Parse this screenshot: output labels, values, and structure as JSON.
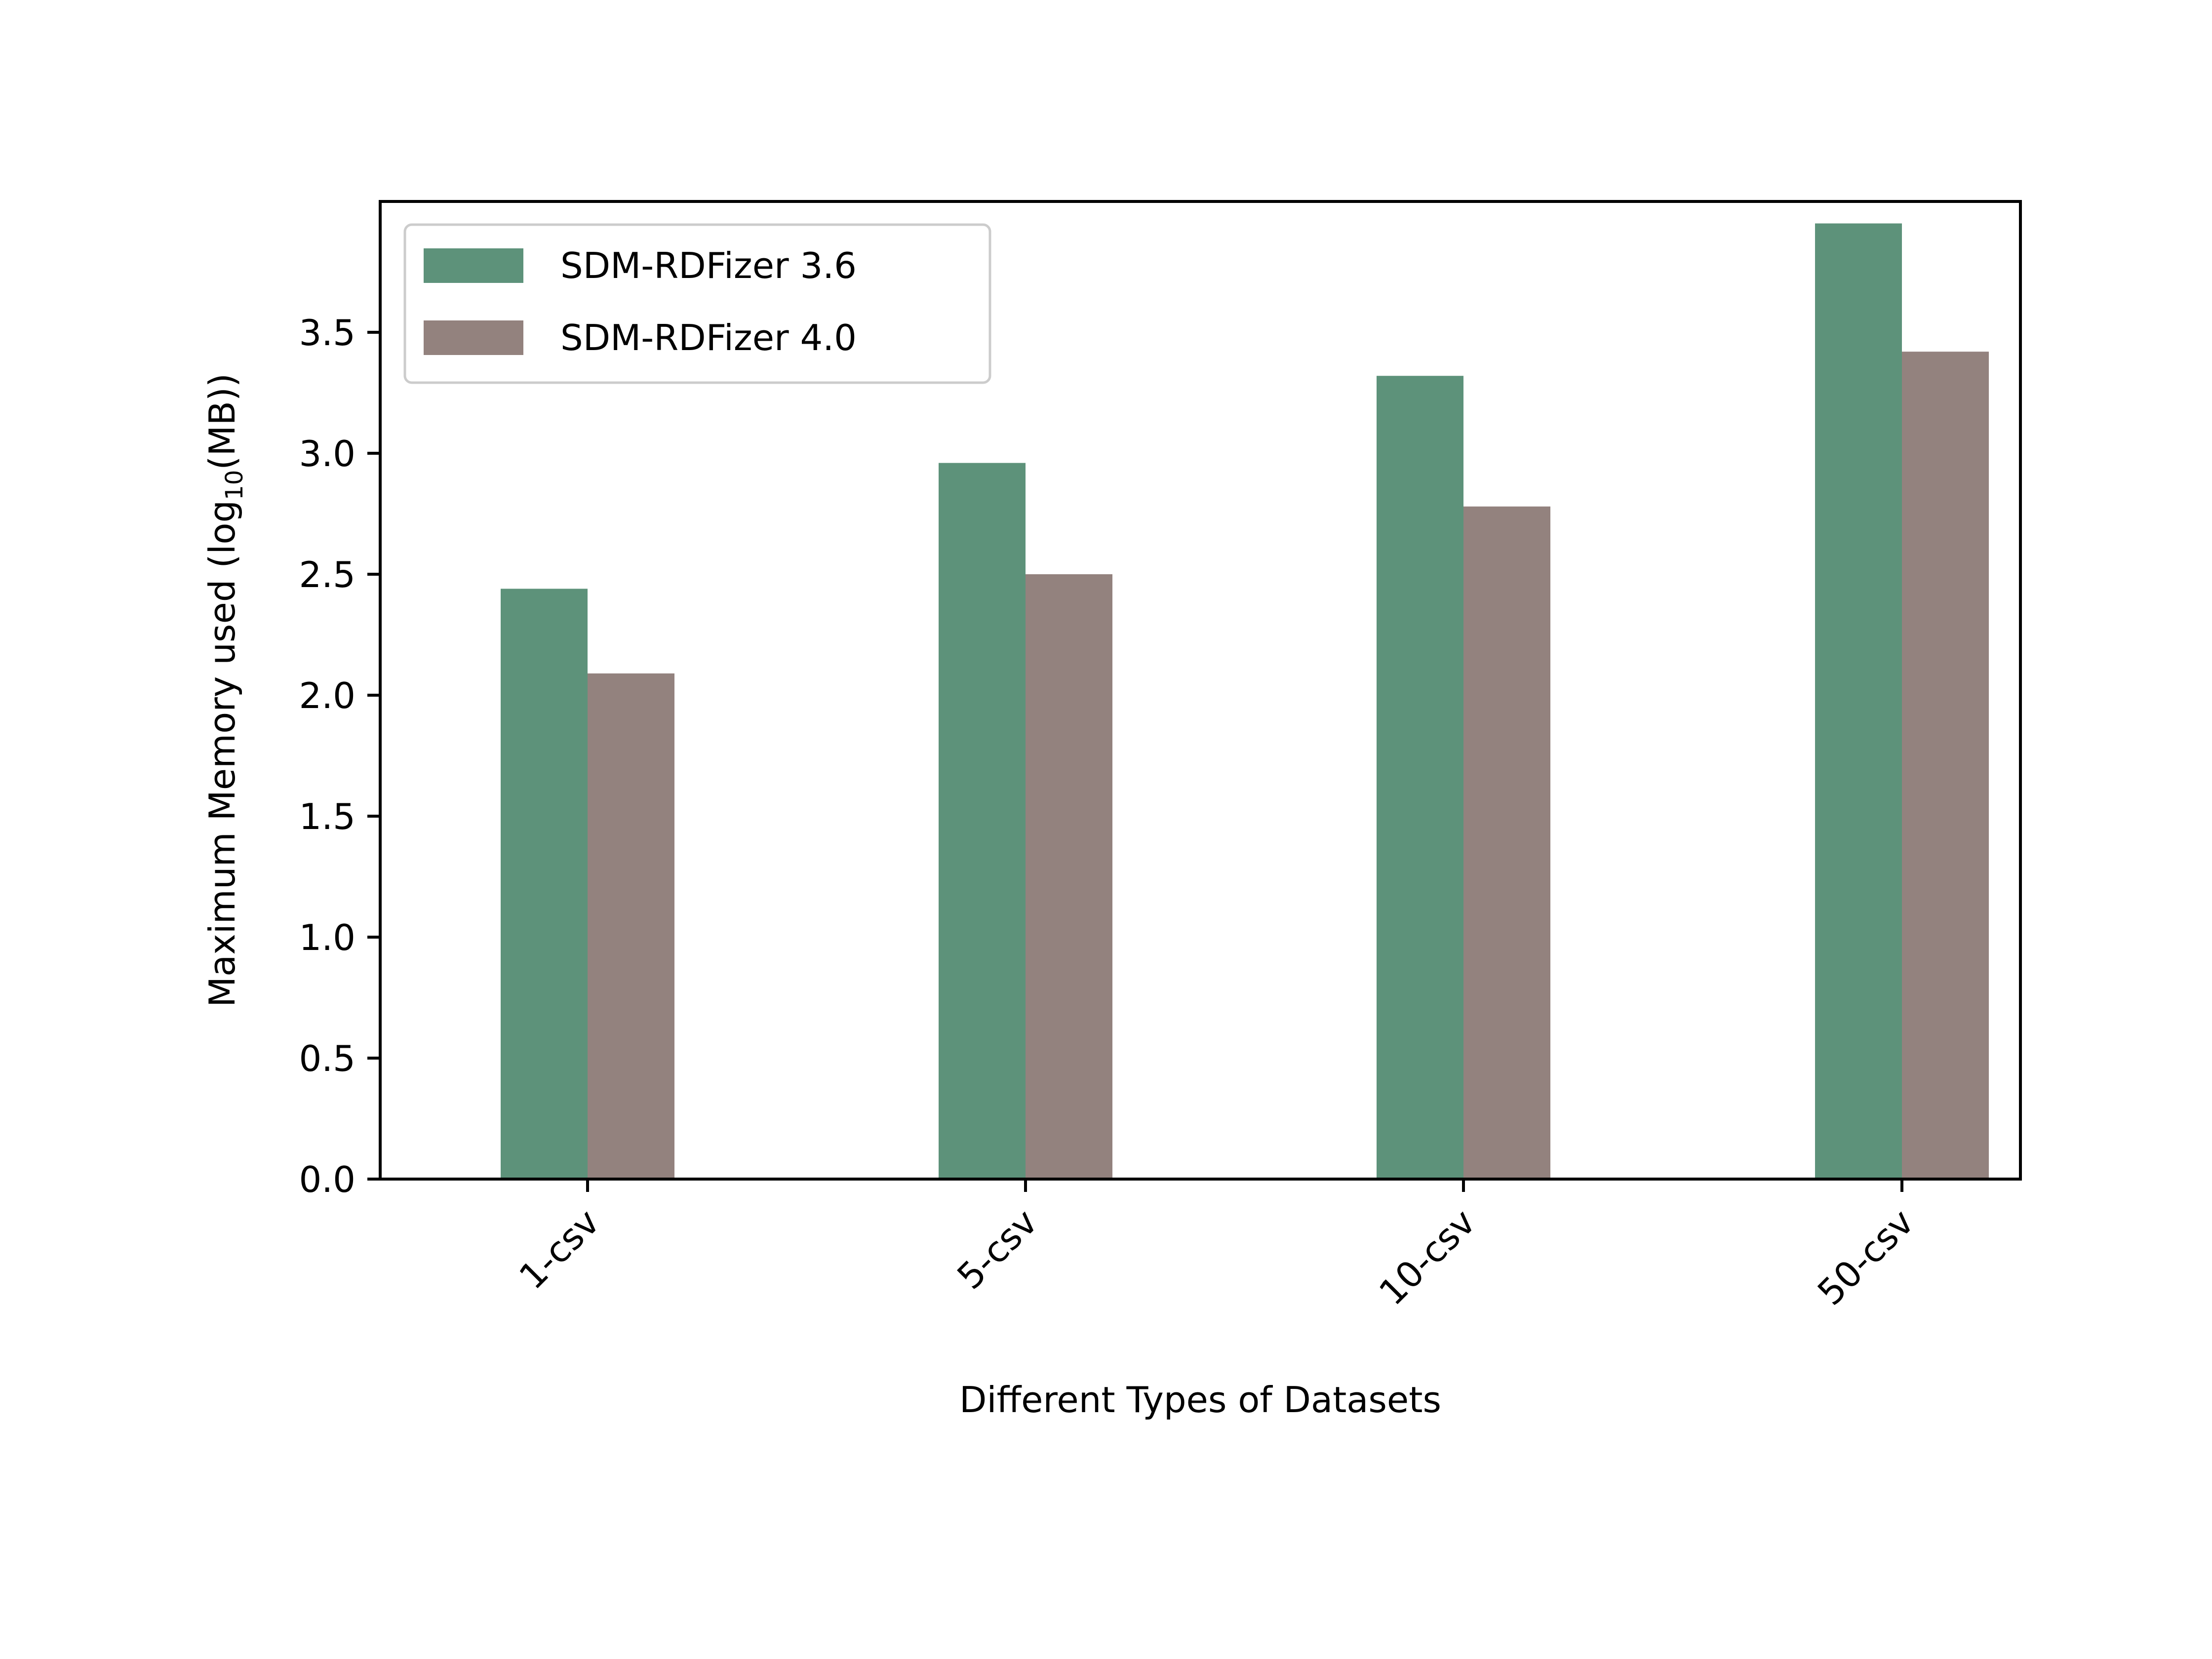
{
  "chart_data": {
    "type": "bar",
    "categories": [
      "1-csv",
      "5-csv",
      "10-csv",
      "50-csv"
    ],
    "series": [
      {
        "name": "SDM-RDFizer 3.6",
        "values": [
          2.44,
          2.96,
          3.32,
          3.95
        ],
        "color": "#5d927a"
      },
      {
        "name": "SDM-RDFizer 4.0",
        "values": [
          2.09,
          2.5,
          2.78,
          3.42
        ],
        "color": "#93827e"
      }
    ],
    "xlabel": "Different Types of Datasets",
    "ylabel": {
      "prefix": "Maximum Memory used (log",
      "subscript": "10",
      "suffix": "(MB))"
    },
    "yticks": [
      "0.0",
      "0.5",
      "1.0",
      "1.5",
      "2.0",
      "2.5",
      "3.0",
      "3.5"
    ],
    "ylim": [
      0,
      4.0
    ],
    "grid": false,
    "legend_position": "top-left"
  }
}
